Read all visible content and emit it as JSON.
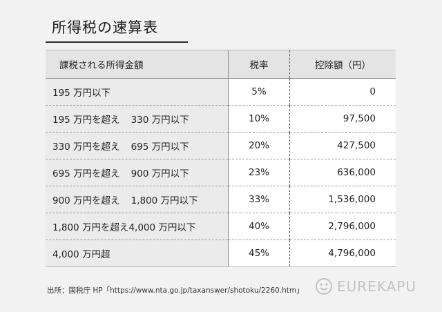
{
  "title": "所得税の速算表",
  "table": {
    "headers": [
      "課税される所得金額",
      "税率",
      "控除額（円）"
    ],
    "rows": [
      {
        "from": "195 万円以下",
        "to": "",
        "rate": "5%",
        "deduction": "0"
      },
      {
        "from": "195 万円を超え",
        "to": "330 万円以下",
        "rate": "10%",
        "deduction": "97,500"
      },
      {
        "from": "330 万円を超え",
        "to": "695 万円以下",
        "rate": "20%",
        "deduction": "427,500"
      },
      {
        "from": "695 万円を超え",
        "to": "900 万円以下",
        "rate": "23%",
        "deduction": "636,000"
      },
      {
        "from": "900 万円を超え",
        "to": "1,800 万円以下",
        "rate": "33%",
        "deduction": "1,536,000"
      },
      {
        "from": "1,800 万円を超え",
        "to": "4,000 万円以下",
        "rate": "40%",
        "deduction": "2,796,000"
      },
      {
        "from": "4,000 万円超",
        "to": "",
        "rate": "45%",
        "deduction": "4,796,000"
      }
    ]
  },
  "source": "出所：国税庁 HP「https://www.nta.go.jp/taxanswer/shotoku/2260.htm」",
  "logo_text": "EUREKAPU",
  "colors": {
    "header_bg": "#e4e4e4",
    "range_bg": "#ebebeb",
    "page_bg": "#f2f2f2"
  }
}
